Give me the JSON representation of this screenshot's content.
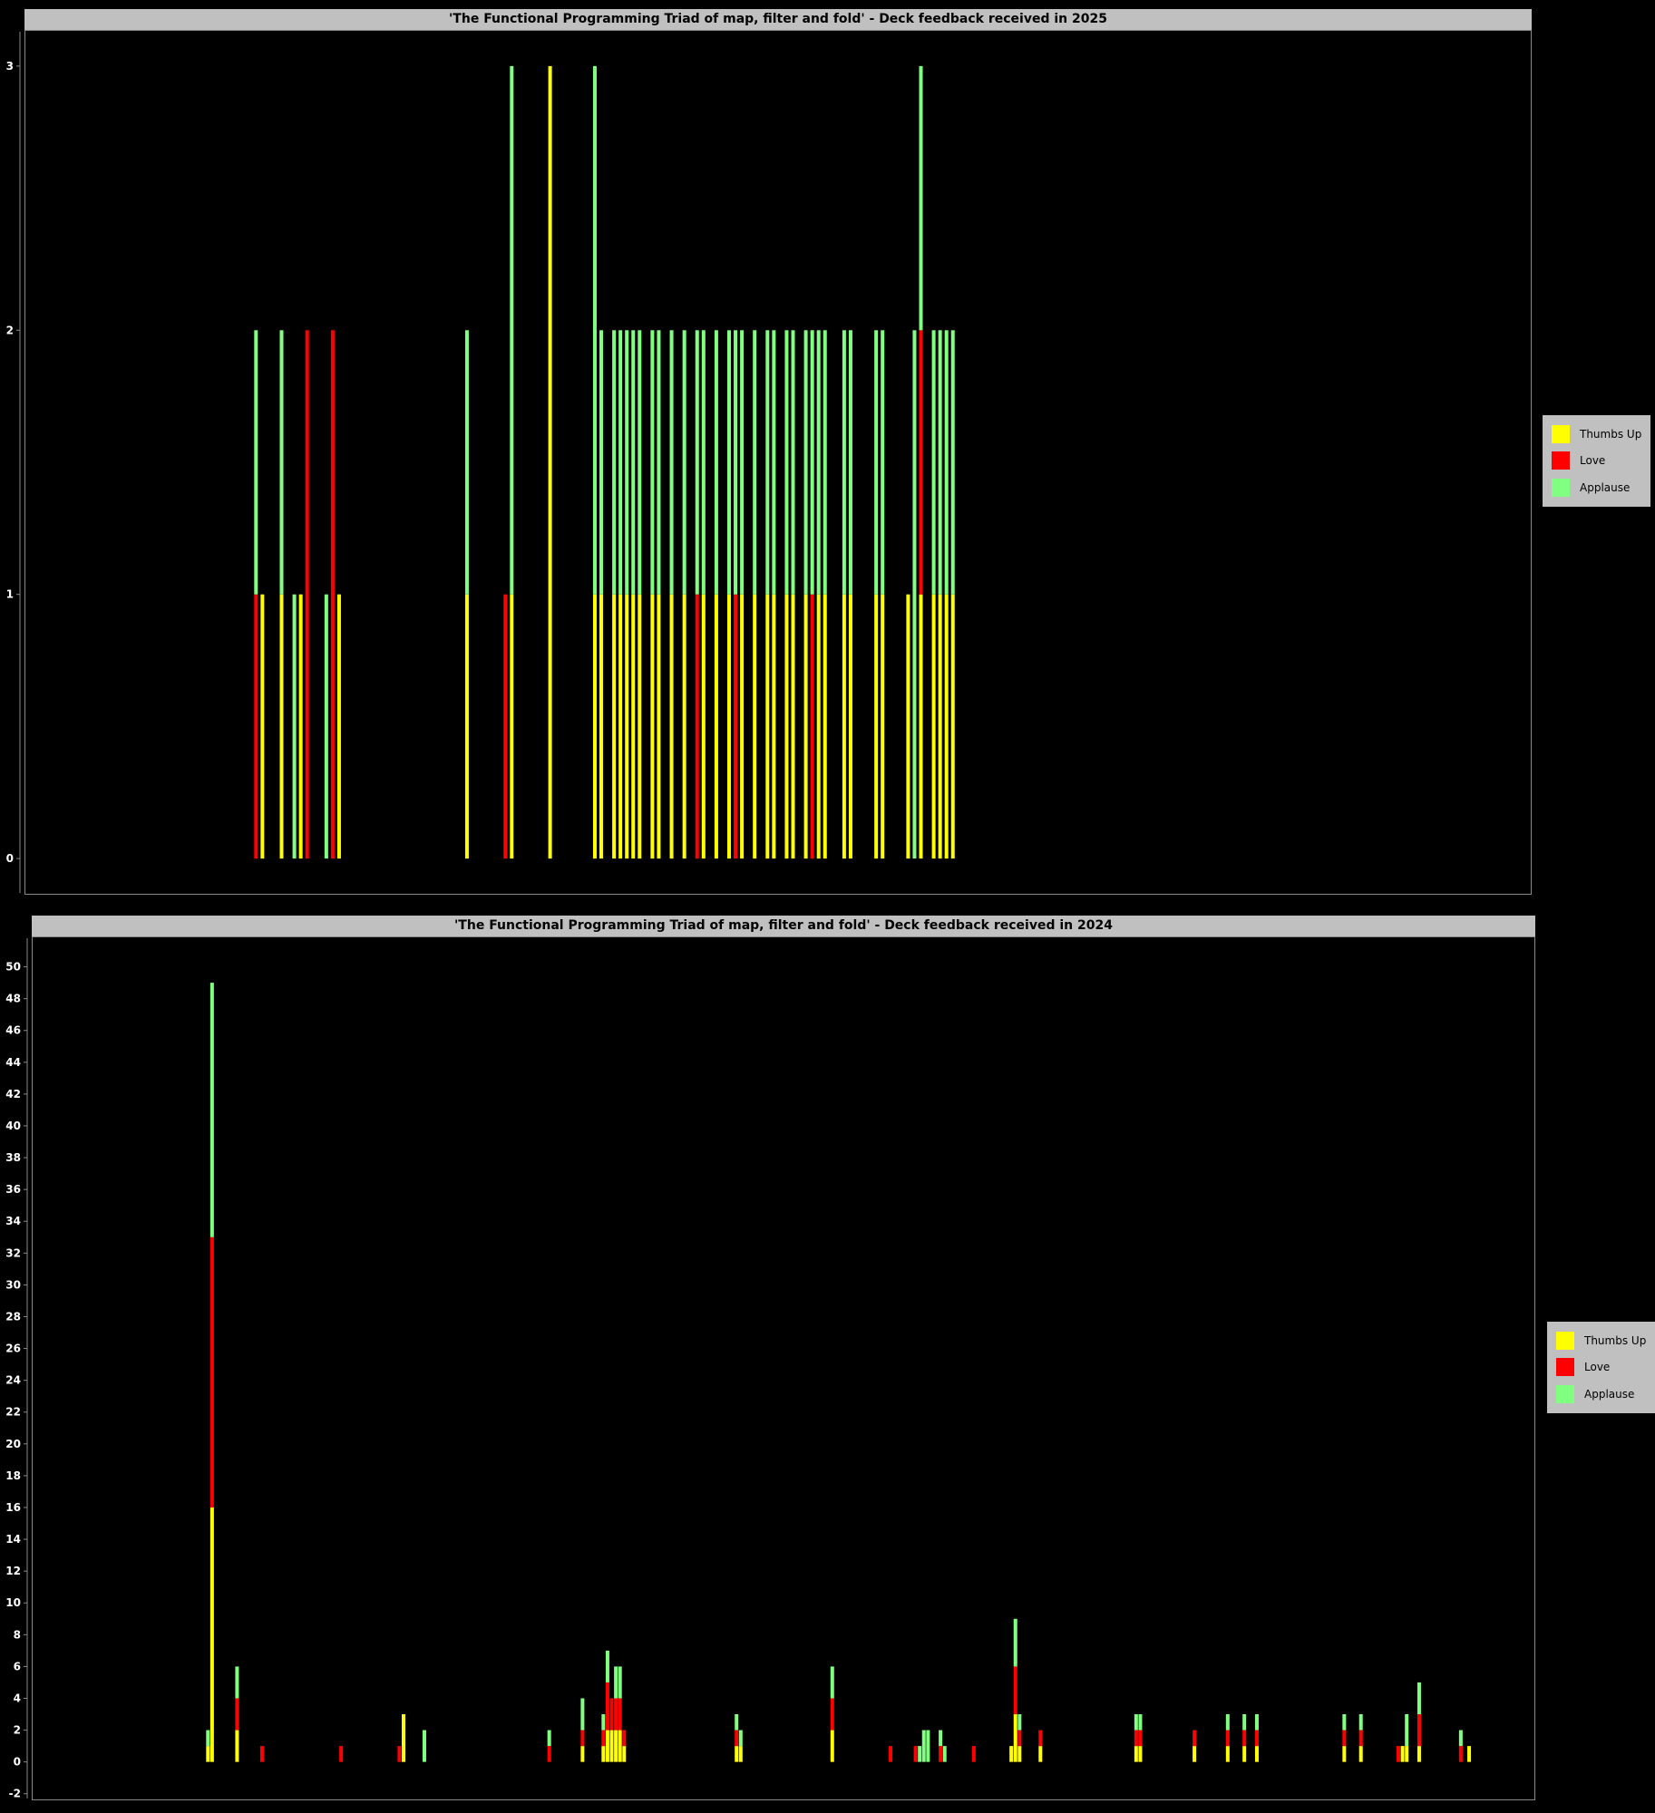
{
  "colors": {
    "thumbs_up": "#ffff00",
    "love": "#ff0000",
    "applause": "#80ff80",
    "background": "#000000"
  },
  "legend_items": [
    {
      "key": "thumbs_up",
      "label": "Thumbs Up"
    },
    {
      "key": "love",
      "label": "Love"
    },
    {
      "key": "applause",
      "label": "Applause"
    }
  ],
  "chart_data": [
    {
      "type": "bar",
      "stacked": true,
      "title": "'The Functional Programming Triad of map, filter and fold' - Deck feedback received in 2025",
      "xlabel": "",
      "ylabel": "",
      "ylim": [
        -0.13,
        3.13
      ],
      "yticks": [
        0,
        1,
        2,
        3
      ],
      "grid": false,
      "legend": "right",
      "slots": 240,
      "bars": [
        {
          "i": 36,
          "t": 0,
          "l": 1,
          "a": 1
        },
        {
          "i": 37,
          "t": 1,
          "l": 0,
          "a": 0
        },
        {
          "i": 40,
          "t": 1,
          "l": 0,
          "a": 1
        },
        {
          "i": 42,
          "t": 0,
          "l": 0,
          "a": 1
        },
        {
          "i": 43,
          "t": 1,
          "l": 0,
          "a": 0
        },
        {
          "i": 44,
          "t": 0,
          "l": 2,
          "a": 0
        },
        {
          "i": 47,
          "t": 0,
          "l": 0,
          "a": 1
        },
        {
          "i": 48,
          "t": 0,
          "l": 2,
          "a": 0
        },
        {
          "i": 49,
          "t": 1,
          "l": 0,
          "a": 0
        },
        {
          "i": 69,
          "t": 1,
          "l": 0,
          "a": 1
        },
        {
          "i": 75,
          "t": 0,
          "l": 1,
          "a": 0
        },
        {
          "i": 76,
          "t": 1,
          "l": 0,
          "a": 2
        },
        {
          "i": 82,
          "t": 3,
          "l": 0,
          "a": 0
        },
        {
          "i": 89,
          "t": 1,
          "l": 0,
          "a": 2
        },
        {
          "i": 90,
          "t": 1,
          "l": 0,
          "a": 1
        },
        {
          "i": 92,
          "t": 1,
          "l": 0,
          "a": 1
        },
        {
          "i": 93,
          "t": 1,
          "l": 0,
          "a": 1
        },
        {
          "i": 94,
          "t": 1,
          "l": 0,
          "a": 1
        },
        {
          "i": 95,
          "t": 1,
          "l": 0,
          "a": 1
        },
        {
          "i": 96,
          "t": 1,
          "l": 0,
          "a": 1
        },
        {
          "i": 98,
          "t": 1,
          "l": 0,
          "a": 1
        },
        {
          "i": 99,
          "t": 1,
          "l": 0,
          "a": 1
        },
        {
          "i": 101,
          "t": 1,
          "l": 0,
          "a": 1
        },
        {
          "i": 103,
          "t": 1,
          "l": 0,
          "a": 1
        },
        {
          "i": 105,
          "t": 0,
          "l": 1,
          "a": 1
        },
        {
          "i": 106,
          "t": 1,
          "l": 0,
          "a": 1
        },
        {
          "i": 108,
          "t": 1,
          "l": 0,
          "a": 1
        },
        {
          "i": 110,
          "t": 1,
          "l": 0,
          "a": 1
        },
        {
          "i": 111,
          "t": 0,
          "l": 1,
          "a": 1
        },
        {
          "i": 112,
          "t": 1,
          "l": 0,
          "a": 1
        },
        {
          "i": 114,
          "t": 1,
          "l": 0,
          "a": 1
        },
        {
          "i": 116,
          "t": 1,
          "l": 0,
          "a": 1
        },
        {
          "i": 117,
          "t": 1,
          "l": 0,
          "a": 1
        },
        {
          "i": 119,
          "t": 1,
          "l": 0,
          "a": 1
        },
        {
          "i": 120,
          "t": 1,
          "l": 0,
          "a": 1
        },
        {
          "i": 122,
          "t": 1,
          "l": 0,
          "a": 1
        },
        {
          "i": 123,
          "t": 0,
          "l": 1,
          "a": 1
        },
        {
          "i": 124,
          "t": 1,
          "l": 0,
          "a": 1
        },
        {
          "i": 125,
          "t": 1,
          "l": 0,
          "a": 1
        },
        {
          "i": 128,
          "t": 1,
          "l": 0,
          "a": 1
        },
        {
          "i": 129,
          "t": 1,
          "l": 0,
          "a": 1
        },
        {
          "i": 133,
          "t": 1,
          "l": 0,
          "a": 1
        },
        {
          "i": 134,
          "t": 1,
          "l": 0,
          "a": 1
        },
        {
          "i": 138,
          "t": 1,
          "l": 0,
          "a": 0
        },
        {
          "i": 139,
          "t": 0,
          "l": 0,
          "a": 2
        },
        {
          "i": 140,
          "t": 1,
          "l": 1,
          "a": 1
        },
        {
          "i": 142,
          "t": 1,
          "l": 0,
          "a": 1
        },
        {
          "i": 143,
          "t": 1,
          "l": 0,
          "a": 1
        },
        {
          "i": 144,
          "t": 1,
          "l": 0,
          "a": 1
        },
        {
          "i": 145,
          "t": 1,
          "l": 0,
          "a": 1
        }
      ]
    },
    {
      "type": "bar",
      "stacked": true,
      "title": "'The Functional Programming Triad of map, filter and fold' - Deck feedback received in 2024",
      "xlabel": "",
      "ylabel": "",
      "ylim": [
        -2.3,
        51.8
      ],
      "yticks": [
        -2,
        0,
        2,
        4,
        6,
        8,
        10,
        12,
        14,
        16,
        18,
        20,
        22,
        24,
        26,
        28,
        30,
        32,
        34,
        36,
        38,
        40,
        42,
        44,
        46,
        48,
        50
      ],
      "grid": false,
      "legend": "right",
      "slots": 366,
      "bars": [
        {
          "i": 42,
          "t": 1,
          "l": 0,
          "a": 1
        },
        {
          "i": 43,
          "t": 16,
          "l": 17,
          "a": 16
        },
        {
          "i": 49,
          "t": 2,
          "l": 2,
          "a": 2
        },
        {
          "i": 55,
          "t": 0,
          "l": 1,
          "a": 0
        },
        {
          "i": 74,
          "t": 0,
          "l": 1,
          "a": 0
        },
        {
          "i": 88,
          "t": 0,
          "l": 1,
          "a": 0
        },
        {
          "i": 89,
          "t": 3,
          "l": 0,
          "a": 0
        },
        {
          "i": 94,
          "t": 0,
          "l": 0,
          "a": 2
        },
        {
          "i": 124,
          "t": 0,
          "l": 1,
          "a": 1
        },
        {
          "i": 132,
          "t": 1,
          "l": 1,
          "a": 2
        },
        {
          "i": 137,
          "t": 1,
          "l": 1,
          "a": 1
        },
        {
          "i": 138,
          "t": 2,
          "l": 3,
          "a": 2
        },
        {
          "i": 139,
          "t": 2,
          "l": 2,
          "a": 0
        },
        {
          "i": 140,
          "t": 2,
          "l": 2,
          "a": 2
        },
        {
          "i": 141,
          "t": 2,
          "l": 2,
          "a": 2
        },
        {
          "i": 142,
          "t": 1,
          "l": 1,
          "a": 0
        },
        {
          "i": 169,
          "t": 1,
          "l": 1,
          "a": 1
        },
        {
          "i": 170,
          "t": 1,
          "l": 0,
          "a": 1
        },
        {
          "i": 192,
          "t": 2,
          "l": 2,
          "a": 2
        },
        {
          "i": 206,
          "t": 0,
          "l": 1,
          "a": 0
        },
        {
          "i": 212,
          "t": 0,
          "l": 1,
          "a": 0
        },
        {
          "i": 213,
          "t": 0,
          "l": 0,
          "a": 1
        },
        {
          "i": 214,
          "t": 0,
          "l": 0,
          "a": 2
        },
        {
          "i": 215,
          "t": 0,
          "l": 0,
          "a": 2
        },
        {
          "i": 218,
          "t": 0,
          "l": 1,
          "a": 1
        },
        {
          "i": 219,
          "t": 0,
          "l": 0,
          "a": 1
        },
        {
          "i": 226,
          "t": 0,
          "l": 1,
          "a": 0
        },
        {
          "i": 235,
          "t": 1,
          "l": 0,
          "a": 0
        },
        {
          "i": 236,
          "t": 3,
          "l": 3,
          "a": 3
        },
        {
          "i": 237,
          "t": 1,
          "l": 1,
          "a": 1
        },
        {
          "i": 242,
          "t": 1,
          "l": 1,
          "a": 0
        },
        {
          "i": 265,
          "t": 1,
          "l": 1,
          "a": 1
        },
        {
          "i": 266,
          "t": 1,
          "l": 1,
          "a": 1
        },
        {
          "i": 279,
          "t": 1,
          "l": 1,
          "a": 0
        },
        {
          "i": 287,
          "t": 1,
          "l": 1,
          "a": 1
        },
        {
          "i": 291,
          "t": 1,
          "l": 1,
          "a": 1
        },
        {
          "i": 294,
          "t": 1,
          "l": 1,
          "a": 1
        },
        {
          "i": 315,
          "t": 1,
          "l": 1,
          "a": 1
        },
        {
          "i": 319,
          "t": 1,
          "l": 1,
          "a": 1
        },
        {
          "i": 328,
          "t": 0,
          "l": 1,
          "a": 0
        },
        {
          "i": 329,
          "t": 1,
          "l": 0,
          "a": 0
        },
        {
          "i": 330,
          "t": 1,
          "l": 0,
          "a": 2
        },
        {
          "i": 333,
          "t": 1,
          "l": 2,
          "a": 2
        },
        {
          "i": 343,
          "t": 0,
          "l": 1,
          "a": 1
        },
        {
          "i": 345,
          "t": 1,
          "l": 0,
          "a": 0
        }
      ]
    }
  ]
}
